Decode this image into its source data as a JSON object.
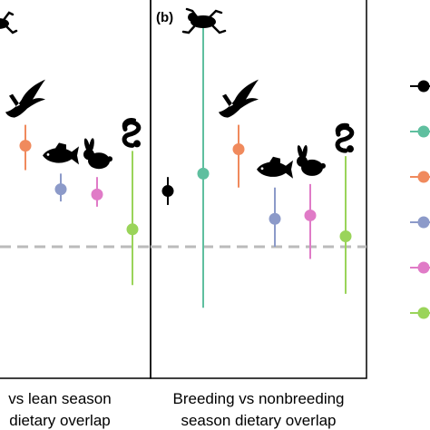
{
  "panel_b_tag": "(b)",
  "colors": {
    "black": "#000000",
    "teal": "#5fbf9f",
    "orange": "#f08a5d",
    "blue": "#8c9ac9",
    "pink": "#e07bc7",
    "green": "#9ad45a",
    "reference_line": "#bbbbbb"
  },
  "icons": [
    "frog-icon",
    "eagle-icon",
    "fish-icon",
    "rabbit-icon",
    "snake-icon"
  ],
  "chart_data": [
    {
      "type": "scatter",
      "panel": "a",
      "title": "",
      "xlabel_lines": [
        "vs lean season",
        "dietary overlap"
      ],
      "reference_line": "dashed",
      "points": [
        {
          "group": "orange",
          "y": 0.58,
          "lo": 0.44,
          "hi": 0.7,
          "icon": "eagle-icon"
        },
        {
          "group": "blue",
          "y": 0.33,
          "lo": 0.26,
          "hi": 0.42,
          "icon": "fish-icon"
        },
        {
          "group": "pink",
          "y": 0.3,
          "lo": 0.23,
          "hi": 0.4,
          "icon": "rabbit-icon"
        },
        {
          "group": "green",
          "y": 0.1,
          "lo": -0.22,
          "hi": 0.55,
          "icon": "snake-icon"
        }
      ]
    },
    {
      "type": "scatter",
      "panel": "b",
      "title": "",
      "xlabel_lines": [
        "Breeding vs nonbreeding",
        "season dietary overlap"
      ],
      "reference_line": "dashed",
      "points": [
        {
          "group": "black",
          "y": 0.32,
          "lo": 0.24,
          "hi": 0.4,
          "icon": ""
        },
        {
          "group": "teal",
          "y": 0.42,
          "lo": -0.35,
          "hi": 1.26,
          "icon": "frog-icon"
        },
        {
          "group": "orange",
          "y": 0.56,
          "lo": 0.34,
          "hi": 0.7,
          "icon": "eagle-icon"
        },
        {
          "group": "blue",
          "y": 0.16,
          "lo": 0.0,
          "hi": 0.34,
          "icon": "fish-icon"
        },
        {
          "group": "pink",
          "y": 0.18,
          "lo": -0.07,
          "hi": 0.36,
          "icon": "rabbit-icon"
        },
        {
          "group": "green",
          "y": 0.06,
          "lo": -0.27,
          "hi": 0.52,
          "icon": "snake-icon"
        }
      ]
    }
  ],
  "legend": [
    {
      "group": "black"
    },
    {
      "group": "teal"
    },
    {
      "group": "orange"
    },
    {
      "group": "blue"
    },
    {
      "group": "pink"
    },
    {
      "group": "green"
    }
  ]
}
